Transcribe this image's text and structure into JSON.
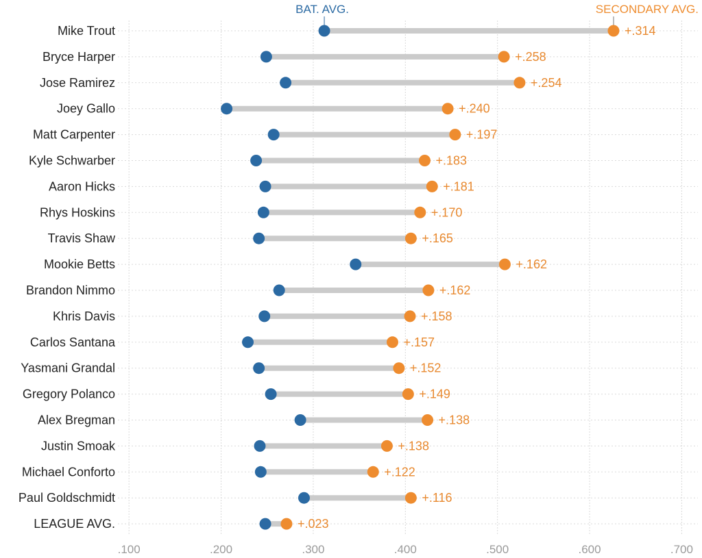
{
  "colors": {
    "batting": "#2b6aa3",
    "secondary": "#ee8c2f",
    "connector": "#cbcbcb",
    "grid": "#d9d9d9",
    "label": "#222222",
    "tick": "#9a9a9a"
  },
  "chart_data": {
    "type": "dumbbell",
    "title": "",
    "series": [
      {
        "name": "BAT. AVG.",
        "key": "bat_avg"
      },
      {
        "name": "SECONDARY AVG.",
        "key": "sec_avg"
      }
    ],
    "xlim": [
      0.085,
      0.722
    ],
    "xticks": [
      0.1,
      0.2,
      0.3,
      0.4,
      0.5,
      0.6,
      0.7
    ],
    "xtick_labels": [
      ".100",
      ".200",
      ".300",
      ".400",
      ".500",
      ".600",
      ".700"
    ],
    "legend_placement": "top, above first row",
    "rows": [
      {
        "player": "Mike Trout",
        "bat_avg": 0.312,
        "sec_avg": 0.626,
        "diff_label": "+.314"
      },
      {
        "player": "Bryce Harper",
        "bat_avg": 0.249,
        "sec_avg": 0.507,
        "diff_label": "+.258"
      },
      {
        "player": "Jose Ramirez",
        "bat_avg": 0.27,
        "sec_avg": 0.524,
        "diff_label": "+.254"
      },
      {
        "player": "Joey Gallo",
        "bat_avg": 0.206,
        "sec_avg": 0.446,
        "diff_label": "+.240"
      },
      {
        "player": "Matt Carpenter",
        "bat_avg": 0.257,
        "sec_avg": 0.454,
        "diff_label": "+.197"
      },
      {
        "player": "Kyle Schwarber",
        "bat_avg": 0.238,
        "sec_avg": 0.421,
        "diff_label": "+.183"
      },
      {
        "player": "Aaron Hicks",
        "bat_avg": 0.248,
        "sec_avg": 0.429,
        "diff_label": "+.181"
      },
      {
        "player": "Rhys Hoskins",
        "bat_avg": 0.246,
        "sec_avg": 0.416,
        "diff_label": "+.170"
      },
      {
        "player": "Travis Shaw",
        "bat_avg": 0.241,
        "sec_avg": 0.406,
        "diff_label": "+.165"
      },
      {
        "player": "Mookie Betts",
        "bat_avg": 0.346,
        "sec_avg": 0.508,
        "diff_label": "+.162"
      },
      {
        "player": "Brandon Nimmo",
        "bat_avg": 0.263,
        "sec_avg": 0.425,
        "diff_label": "+.162"
      },
      {
        "player": "Khris Davis",
        "bat_avg": 0.247,
        "sec_avg": 0.405,
        "diff_label": "+.158"
      },
      {
        "player": "Carlos Santana",
        "bat_avg": 0.229,
        "sec_avg": 0.386,
        "diff_label": "+.157"
      },
      {
        "player": "Yasmani Grandal",
        "bat_avg": 0.241,
        "sec_avg": 0.393,
        "diff_label": "+.152"
      },
      {
        "player": "Gregory Polanco",
        "bat_avg": 0.254,
        "sec_avg": 0.403,
        "diff_label": "+.149"
      },
      {
        "player": "Alex Bregman",
        "bat_avg": 0.286,
        "sec_avg": 0.424,
        "diff_label": "+.138"
      },
      {
        "player": "Justin Smoak",
        "bat_avg": 0.242,
        "sec_avg": 0.38,
        "diff_label": "+.138"
      },
      {
        "player": "Michael Conforto",
        "bat_avg": 0.243,
        "sec_avg": 0.365,
        "diff_label": "+.122"
      },
      {
        "player": "Paul Goldschmidt",
        "bat_avg": 0.29,
        "sec_avg": 0.406,
        "diff_label": "+.116"
      },
      {
        "player": "LEAGUE AVG.",
        "bat_avg": 0.248,
        "sec_avg": 0.271,
        "diff_label": "+.023"
      }
    ]
  }
}
